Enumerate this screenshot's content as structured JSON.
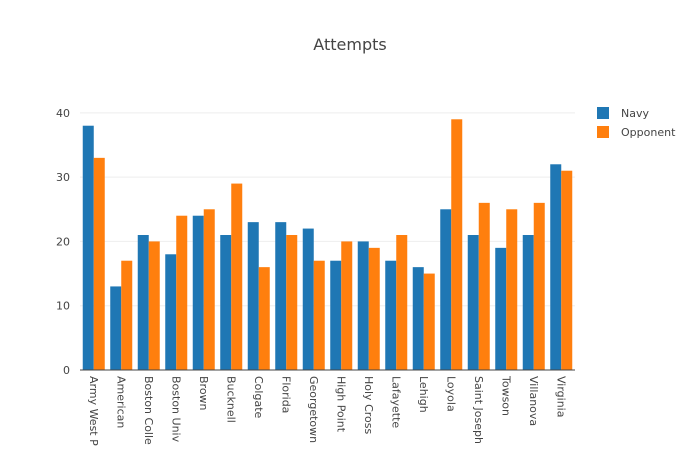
{
  "chart_data": {
    "type": "bar",
    "title": "Attempts",
    "xlabel": "",
    "ylabel": "",
    "categories": [
      "Army West P",
      "American",
      "Boston Colle",
      "Boston Univ",
      "Brown",
      "Bucknell",
      "Colgate",
      "Florida",
      "Georgetown",
      "High Point",
      "Holy Cross",
      "Lafayette",
      "Lehigh",
      "Loyola",
      "Saint Joseph",
      "Towson",
      "Villanova",
      "Virginia"
    ],
    "series": [
      {
        "name": "Navy",
        "color": "#1f77b4",
        "values": [
          38,
          13,
          21,
          18,
          24,
          21,
          23,
          23,
          22,
          17,
          20,
          17,
          16,
          25,
          21,
          19,
          21,
          32
        ]
      },
      {
        "name": "Opponent",
        "color": "#ff7f0e",
        "values": [
          33,
          17,
          20,
          24,
          25,
          29,
          16,
          21,
          17,
          20,
          19,
          21,
          15,
          39,
          26,
          25,
          26,
          31
        ]
      }
    ],
    "ylim": [
      0,
      42
    ],
    "yticks": [
      0,
      10,
      20,
      30,
      40
    ],
    "grid": true,
    "legend": "top-right"
  }
}
